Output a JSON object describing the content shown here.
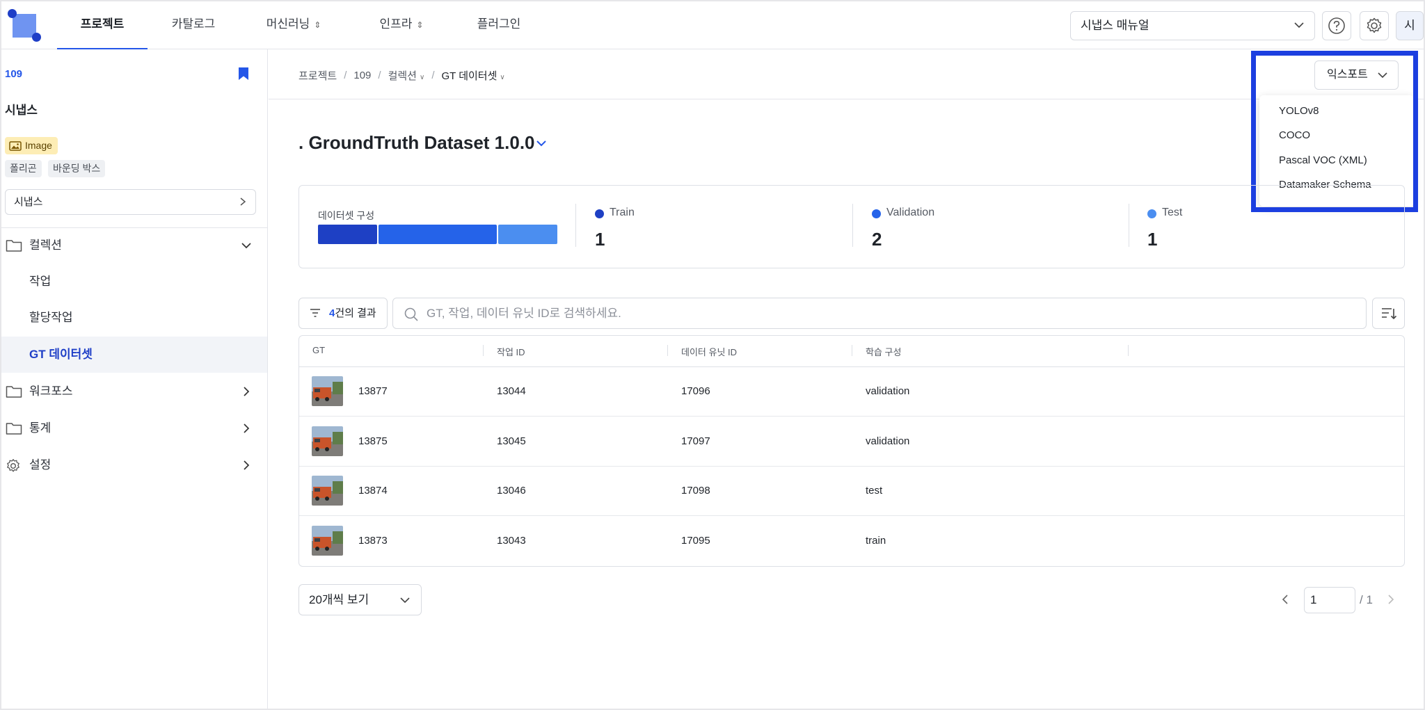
{
  "nav": {
    "tabs": [
      {
        "label": "프로젝트",
        "active": true,
        "dropdown": false
      },
      {
        "label": "카탈로그",
        "active": false,
        "dropdown": false
      },
      {
        "label": "머신러닝",
        "active": false,
        "dropdown": true
      },
      {
        "label": "인프라",
        "active": false,
        "dropdown": true
      },
      {
        "label": "플러그인",
        "active": false,
        "dropdown": false
      }
    ],
    "manual_select": "시냅스 매뉴얼",
    "avatar": "시",
    "icons": [
      "help-icon",
      "settings-icon"
    ]
  },
  "sidebar": {
    "project_id": "109",
    "project_name": "시냅스",
    "type_badge": "Image",
    "tags": [
      "폴리곤",
      "바운딩 박스"
    ],
    "project_select": "시냅스",
    "items": [
      {
        "label": "컬렉션",
        "icon": "folder-icon",
        "expanded": true
      },
      {
        "label": "워크포스",
        "icon": "folder-icon",
        "expanded": false
      },
      {
        "label": "통계",
        "icon": "folder-icon",
        "expanded": false
      },
      {
        "label": "설정",
        "icon": "gear-icon",
        "expanded": false
      }
    ],
    "sub_items": [
      {
        "label": "작업",
        "active": false
      },
      {
        "label": "할당작업",
        "active": false
      },
      {
        "label": "GT 데이터셋",
        "active": true
      }
    ]
  },
  "breadcrumb": [
    "프로젝트",
    "109",
    "컬렉션",
    "GT 데이터셋"
  ],
  "export": {
    "label": "익스포트",
    "options": [
      "YOLOv8",
      "COCO",
      "Pascal VOC (XML)",
      "Datamaker Schema"
    ]
  },
  "dataset": {
    "title": ". GroundTruth Dataset 1.0.0",
    "composition_label": "데이터셋 구성",
    "composition": [
      {
        "name": "Train",
        "value": 1,
        "color": "#1e40c4"
      },
      {
        "name": "Validation",
        "value": 2,
        "color": "#2563e9"
      },
      {
        "name": "Test",
        "value": 1,
        "color": "#4b8ef0"
      }
    ],
    "stats": [
      {
        "name": "Train",
        "value": "1",
        "color": "#1e40c4"
      },
      {
        "name": "Validation",
        "value": "2",
        "color": "#2563e9"
      },
      {
        "name": "Test",
        "value": "1",
        "color": "#4b8ef0"
      }
    ]
  },
  "filter": {
    "count": "4",
    "suffix": "건의 결과"
  },
  "search": {
    "placeholder": "GT, 작업, 데이터 유닛 ID로 검색하세요.",
    "value": ""
  },
  "table": {
    "headers": [
      "GT",
      "작업 ID",
      "데이터 유닛 ID",
      "학습 구성"
    ],
    "rows": [
      {
        "gt": "13877",
        "task_id": "13044",
        "unit_id": "17096",
        "split": "validation"
      },
      {
        "gt": "13875",
        "task_id": "13045",
        "unit_id": "17097",
        "split": "validation"
      },
      {
        "gt": "13874",
        "task_id": "13046",
        "unit_id": "17098",
        "split": "test"
      },
      {
        "gt": "13873",
        "task_id": "13043",
        "unit_id": "17095",
        "split": "train"
      }
    ]
  },
  "pagination": {
    "page_size": "20개씩 보기",
    "current": "1",
    "total": "/ 1"
  }
}
